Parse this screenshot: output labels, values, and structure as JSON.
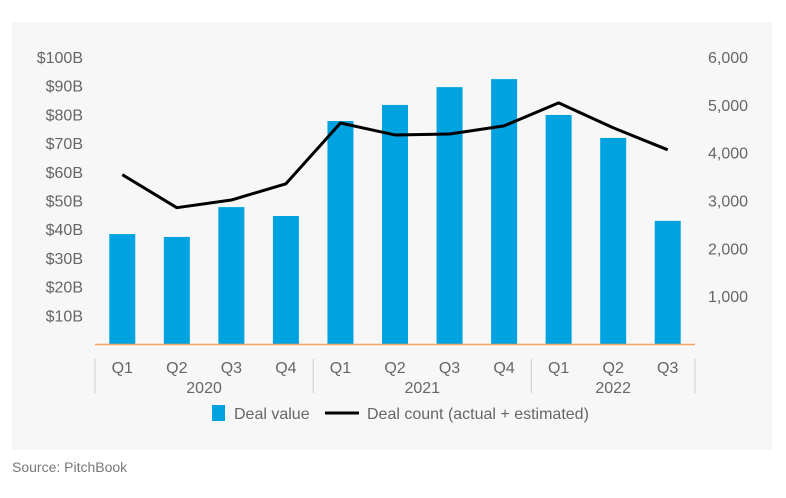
{
  "chart_data": {
    "type": "bar+line",
    "categories": [
      "Q1",
      "Q2",
      "Q3",
      "Q4",
      "Q1",
      "Q2",
      "Q3",
      "Q4",
      "Q1",
      "Q2",
      "Q3"
    ],
    "groups": [
      {
        "label": "2020",
        "count": 4
      },
      {
        "label": "2021",
        "count": 4
      },
      {
        "label": "2022",
        "count": 3
      }
    ],
    "series": [
      {
        "name": "Deal value",
        "type": "bar",
        "axis": "left",
        "color": "#00a3e0",
        "values": [
          38.3,
          37.3,
          47.7,
          44.6,
          77.7,
          83.3,
          89.5,
          92.3,
          79.8,
          71.8,
          42.9
        ]
      },
      {
        "name": "Deal count (actual + estimated)",
        "type": "line",
        "axis": "right",
        "color": "#000000",
        "values": [
          3540,
          2850,
          3010,
          3350,
          4620,
          4370,
          4390,
          4560,
          5040,
          4520,
          4060
        ]
      }
    ],
    "left_axis": {
      "ylim": [
        0,
        100
      ],
      "ticks": [
        "$10B",
        "$20B",
        "$30B",
        "$40B",
        "$50B",
        "$60B",
        "$70B",
        "$80B",
        "$90B",
        "$100B"
      ],
      "tick_values": [
        10,
        20,
        30,
        40,
        50,
        60,
        70,
        80,
        90,
        100
      ]
    },
    "right_axis": {
      "ylim": [
        0,
        6000
      ],
      "ticks": [
        "1,000",
        "2,000",
        "3,000",
        "4,000",
        "5,000",
        "6,000"
      ],
      "tick_values": [
        1000,
        2000,
        3000,
        4000,
        5000,
        6000
      ]
    },
    "baseline_color": "#f4a460",
    "grid": false,
    "legend_position": "bottom"
  },
  "source": "Source: PitchBook"
}
